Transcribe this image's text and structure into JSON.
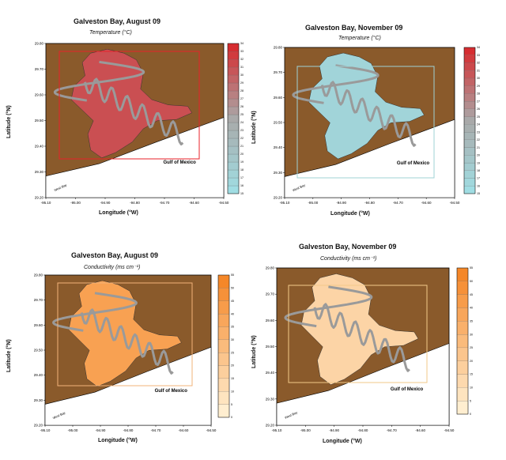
{
  "chart_data": [
    {
      "type": "heatmap",
      "title": "Galveston Bay, August 09",
      "subtitle": "Temperature (°C)",
      "xlabel": "Longitude (°W)",
      "ylabel": "Latitude (°N)",
      "xticks": [
        "-95.10",
        "-95.00",
        "-94.90",
        "-94.80",
        "-94.70",
        "-94.60",
        "-94.50"
      ],
      "yticks": [
        "29.80",
        "29.70",
        "29.60",
        "29.50",
        "29.40",
        "29.30",
        "29.20"
      ],
      "xlim": [
        -95.1,
        -94.5
      ],
      "ylim": [
        29.2,
        29.8
      ],
      "colorbar": {
        "min": 15,
        "max": 34,
        "step": 1,
        "low_color": "#9fe0e6",
        "mid_color": "#a9a9a9",
        "high_color": "#d9262a"
      },
      "dominant_value": 31,
      "annotations": [
        "Gulf of Mexico",
        "West Bay"
      ],
      "box_color": "#e8222a"
    },
    {
      "type": "heatmap",
      "title": "Galveston Bay, November 09",
      "subtitle": "Temperature (°C)",
      "xlabel": "Longitude (°W)",
      "ylabel": "Latitude (°N)",
      "xticks": [
        "-95.10",
        "-95.00",
        "-94.90",
        "-94.80",
        "-94.70",
        "-94.60",
        "-94.50"
      ],
      "yticks": [
        "29.80",
        "29.70",
        "29.60",
        "29.50",
        "29.40",
        "29.30",
        "29.20"
      ],
      "xlim": [
        -95.1,
        -94.5
      ],
      "ylim": [
        29.2,
        29.8
      ],
      "colorbar": {
        "min": 15,
        "max": 34,
        "step": 1,
        "low_color": "#9fe0e6",
        "mid_color": "#a9a9a9",
        "high_color": "#d9262a"
      },
      "dominant_value": 17,
      "annotations": [
        "Gulf of Mexico",
        "West Bay"
      ],
      "box_color": "#9fd3d6"
    },
    {
      "type": "heatmap",
      "title": "Galveston Bay, August 09",
      "subtitle": "Conductivity (ms cm⁻¹)",
      "xlabel": "Longitude (°W)",
      "ylabel": "Latitude (°N)",
      "xticks": [
        "-95.10",
        "-95.00",
        "-94.90",
        "-94.80",
        "-94.70",
        "-94.60",
        "-94.50"
      ],
      "yticks": [
        "29.80",
        "29.70",
        "29.60",
        "29.50",
        "29.40",
        "29.30",
        "29.20"
      ],
      "xlim": [
        -95.1,
        -94.5
      ],
      "ylim": [
        29.2,
        29.8
      ],
      "colorbar": {
        "min": 0,
        "max": 55,
        "step": 5,
        "low_color": "#fff3d8",
        "high_color": "#f58220"
      },
      "dominant_value": 40,
      "annotations": [
        "Gulf of Mexico",
        "West Bay"
      ],
      "box_color": "#f2b37a"
    },
    {
      "type": "heatmap",
      "title": "Galveston Bay, November 09",
      "subtitle": "Conductivity (ms cm⁻¹)",
      "xlabel": "Longitude (°W)",
      "ylabel": "Latitude (°N)",
      "xticks": [
        "-95.10",
        "-95.00",
        "-94.90",
        "-94.80",
        "-94.70",
        "-94.60",
        "-94.50"
      ],
      "yticks": [
        "29.80",
        "29.70",
        "29.60",
        "29.50",
        "29.40",
        "29.30",
        "29.20"
      ],
      "xlim": [
        -95.1,
        -94.5
      ],
      "ylim": [
        29.2,
        29.8
      ],
      "colorbar": {
        "min": 0,
        "max": 55,
        "step": 5,
        "low_color": "#fff3d8",
        "high_color": "#f58220"
      },
      "dominant_value": 15,
      "annotations": [
        "Gulf of Mexico",
        "West Bay"
      ],
      "box_color": "#f2c98a"
    }
  ],
  "colors": {
    "land": "#8a5a2b",
    "gulf": "#ffffff",
    "track": "#9a9a9a",
    "outline": "#000000"
  }
}
